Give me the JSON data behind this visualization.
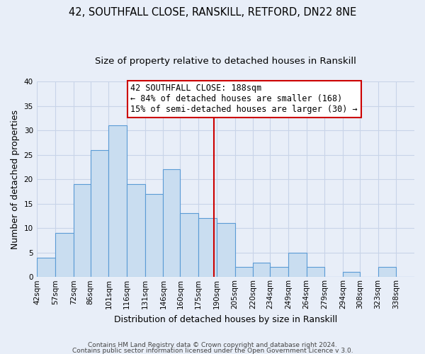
{
  "title1": "42, SOUTHFALL CLOSE, RANSKILL, RETFORD, DN22 8NE",
  "title2": "Size of property relative to detached houses in Ranskill",
  "xlabel": "Distribution of detached houses by size in Ranskill",
  "ylabel": "Number of detached properties",
  "footer1": "Contains HM Land Registry data © Crown copyright and database right 2024.",
  "footer2": "Contains public sector information licensed under the Open Government Licence v 3.0.",
  "bar_edges": [
    42,
    57,
    72,
    86,
    101,
    116,
    131,
    146,
    160,
    175,
    190,
    205,
    220,
    234,
    249,
    264,
    279,
    294,
    308,
    323,
    338,
    353
  ],
  "bar_heights": [
    4,
    9,
    19,
    26,
    31,
    19,
    17,
    22,
    13,
    12,
    11,
    2,
    3,
    2,
    5,
    2,
    0,
    1,
    0,
    2,
    0
  ],
  "bar_color": "#c9ddf0",
  "bar_edge_color": "#5b9bd5",
  "property_size": 188,
  "vline_color": "#cc0000",
  "annotation_line1": "42 SOUTHFALL CLOSE: 188sqm",
  "annotation_line2": "← 84% of detached houses are smaller (168)",
  "annotation_line3": "15% of semi-detached houses are larger (30) →",
  "annotation_box_color": "#ffffff",
  "annotation_box_edge_color": "#cc0000",
  "ylim": [
    0,
    40
  ],
  "yticks": [
    0,
    5,
    10,
    15,
    20,
    25,
    30,
    35,
    40
  ],
  "x_tick_labels": [
    "42sqm",
    "57sqm",
    "72sqm",
    "86sqm",
    "101sqm",
    "116sqm",
    "131sqm",
    "146sqm",
    "160sqm",
    "175sqm",
    "190sqm",
    "205sqm",
    "220sqm",
    "234sqm",
    "249sqm",
    "264sqm",
    "279sqm",
    "294sqm",
    "308sqm",
    "323sqm",
    "338sqm"
  ],
  "background_color": "#e8eef8",
  "grid_color": "#c8d4e8",
  "title_fontsize": 10.5,
  "subtitle_fontsize": 9.5,
  "axis_label_fontsize": 9,
  "tick_fontsize": 7.5,
  "annotation_fontsize": 8.5,
  "footer_fontsize": 6.5,
  "footer_color": "#444444"
}
